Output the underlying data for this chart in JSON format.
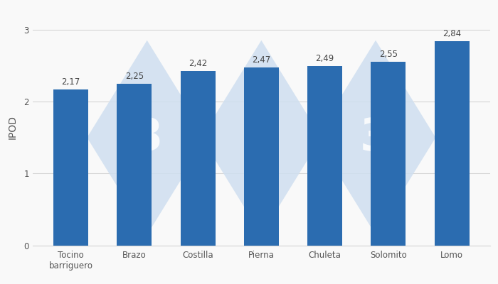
{
  "categories": [
    "Tocino\nbarriguero",
    "Brazo",
    "Costilla",
    "Pierna",
    "Chuleta",
    "Solomito",
    "Lomo"
  ],
  "values": [
    2.17,
    2.25,
    2.42,
    2.47,
    2.49,
    2.55,
    2.84
  ],
  "value_labels": [
    "2,17",
    "2,25",
    "2,42",
    "2,47",
    "2,49",
    "2,55",
    "2,84"
  ],
  "bar_color": "#2B6CB0",
  "ylabel": "IPOD",
  "ylim": [
    0,
    3.3
  ],
  "yticks": [
    0,
    1,
    2,
    3
  ],
  "label_fontsize": 8.5,
  "ylabel_fontsize": 10,
  "tick_fontsize": 8.5,
  "background_color": "#f9f9f9",
  "grid_color": "#d5d5d5",
  "watermark_color": "#cfdff0",
  "watermark_alpha": 0.85
}
